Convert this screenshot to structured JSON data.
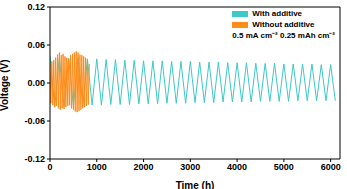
{
  "chart_data": {
    "type": "line",
    "x_label": "Time (h)",
    "y_label": "Voltage (V)",
    "annotation": "0.5 mA cm⁻² 0.25 mAh cm⁻²",
    "legend": "upper right",
    "xlim": [
      0,
      6200
    ],
    "xticks": [
      0,
      1000,
      2000,
      3000,
      4000,
      5000,
      6000
    ],
    "ylim": [
      -0.12,
      0.12
    ],
    "yticks": [
      -0.12,
      -0.06,
      {
        "value": 0,
        "label": "0.00"
      },
      0.06,
      0.12
    ],
    "series": [
      {
        "name": "With additive",
        "color": "#3ec8c8",
        "x": [
          0,
          100,
          200,
          300,
          400,
          500,
          600,
          700,
          800,
          900,
          1000,
          1100,
          1200,
          1300,
          1400,
          1500,
          1600,
          1700,
          1800,
          1900,
          2000,
          2100,
          2200,
          2300,
          2400,
          2500,
          2600,
          2700,
          2800,
          2900,
          3000,
          3100,
          3200,
          3300,
          3400,
          3500,
          3600,
          3700,
          3800,
          3900,
          4000,
          4100,
          4200,
          4300,
          4400,
          4500,
          4600,
          4700,
          4800,
          4900,
          5000,
          5100,
          5200,
          5300,
          5400,
          5500,
          5600,
          5700,
          5800,
          5900,
          6000,
          6100
        ],
        "values": [
          0.042,
          -0.038,
          0.04,
          -0.037,
          0.039,
          -0.036,
          0.039,
          -0.036,
          0.038,
          -0.035,
          0.038,
          -0.035,
          0.037,
          -0.034,
          0.037,
          -0.034,
          0.036,
          -0.034,
          0.036,
          -0.033,
          0.035,
          -0.033,
          0.035,
          -0.033,
          0.035,
          -0.032,
          0.034,
          -0.032,
          0.034,
          -0.032,
          0.034,
          -0.031,
          0.033,
          -0.031,
          0.033,
          -0.031,
          0.033,
          -0.03,
          0.032,
          -0.03,
          0.032,
          -0.03,
          0.032,
          -0.03,
          0.031,
          -0.029,
          0.031,
          -0.029,
          0.031,
          -0.029,
          0.03,
          -0.029,
          0.03,
          -0.028,
          0.03,
          -0.028,
          0.03,
          -0.028,
          0.029,
          -0.028,
          0.029,
          -0.028
        ]
      },
      {
        "name": "Without additive",
        "color": "#ff8c1a",
        "x": [
          0,
          20,
          40,
          60,
          80,
          100,
          120,
          140,
          160,
          180,
          200,
          220,
          240,
          260,
          280,
          300,
          320,
          340,
          360,
          380,
          400,
          420,
          440,
          460,
          480,
          500,
          520,
          540,
          560,
          580,
          600,
          620,
          640,
          660,
          680,
          700,
          720,
          740,
          760,
          780,
          800,
          820,
          840
        ],
        "values": [
          0.03,
          -0.032,
          0.034,
          -0.035,
          0.036,
          -0.038,
          0.04,
          -0.036,
          0.045,
          -0.04,
          0.048,
          -0.042,
          0.044,
          -0.04,
          0.046,
          -0.041,
          0.042,
          -0.038,
          0.04,
          -0.036,
          0.038,
          -0.035,
          0.044,
          -0.04,
          0.046,
          -0.042,
          0.048,
          -0.045,
          0.05,
          -0.046,
          0.048,
          -0.044,
          0.045,
          -0.042,
          0.044,
          -0.04,
          0.042,
          -0.038,
          0.04,
          -0.036,
          0.038,
          -0.034,
          0.03
        ]
      }
    ]
  }
}
